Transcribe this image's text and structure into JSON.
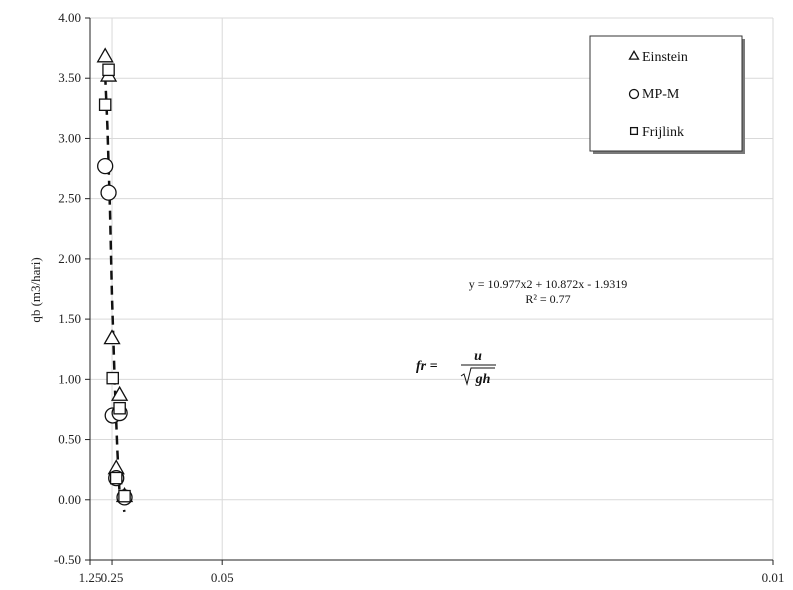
{
  "chart_data": {
    "type": "scatter",
    "title": "",
    "xlabel": "",
    "ylabel": "qb (m3/hari)",
    "x_scale": "reciprocal",
    "x_ticks": [
      1.25,
      0.25,
      0.05,
      0.01
    ],
    "x_tick_labels": [
      "1.25",
      "0.25",
      "0.05",
      "0.01"
    ],
    "ylim": [
      -0.5,
      4.0
    ],
    "y_ticks": [
      -0.5,
      0,
      0.5,
      1.0,
      1.5,
      2.0,
      2.5,
      3.0,
      3.5,
      4.0
    ],
    "y_tick_labels": [
      "-0.50",
      "0.00",
      "0.50",
      "1.00",
      "1.50",
      "2.00",
      "2.50",
      "3.00",
      "3.50",
      "4.00"
    ],
    "grid": true,
    "legend_position": "top-right",
    "series": [
      {
        "name": "Einstein",
        "marker": "triangle",
        "points": [
          [
            0.333,
            3.68
          ],
          [
            0.286,
            3.52
          ],
          [
            0.25,
            1.34
          ],
          [
            0.217,
            0.26
          ],
          [
            0.196,
            0.87
          ],
          [
            0.172,
            0.03
          ]
        ]
      },
      {
        "name": "MP-M",
        "marker": "circle",
        "points": [
          [
            0.333,
            2.77
          ],
          [
            0.286,
            2.55
          ],
          [
            0.244,
            0.7
          ],
          [
            0.217,
            0.18
          ],
          [
            0.196,
            0.72
          ],
          [
            0.172,
            0.02
          ]
        ]
      },
      {
        "name": "Frijlink",
        "marker": "square",
        "points": [
          [
            0.333,
            3.28
          ],
          [
            0.286,
            3.57
          ],
          [
            0.244,
            1.01
          ],
          [
            0.217,
            0.18
          ],
          [
            0.196,
            0.76
          ],
          [
            0.172,
            0.03
          ]
        ]
      }
    ],
    "trendline": {
      "style": "dashed",
      "x_range": [
        0.333,
        0.172
      ],
      "points": [
        [
          0.333,
          3.52
        ],
        [
          0.3,
          3.1
        ],
        [
          0.27,
          2.4
        ],
        [
          0.25,
          1.68
        ],
        [
          0.227,
          0.96
        ],
        [
          0.21,
          0.42
        ],
        [
          0.196,
          0.05
        ],
        [
          0.172,
          -0.1
        ]
      ]
    },
    "annotations": {
      "equation": "y = 10.977x2 + 10.872x - 1.9319",
      "r_squared": "R² = 0.77",
      "formula_lhs": "fr =",
      "formula_num": "u",
      "formula_den": "gh"
    }
  },
  "colors": {
    "marker": "#111111",
    "grid": "#d9d9d9",
    "axis": "#222222",
    "trend": "#111111"
  }
}
